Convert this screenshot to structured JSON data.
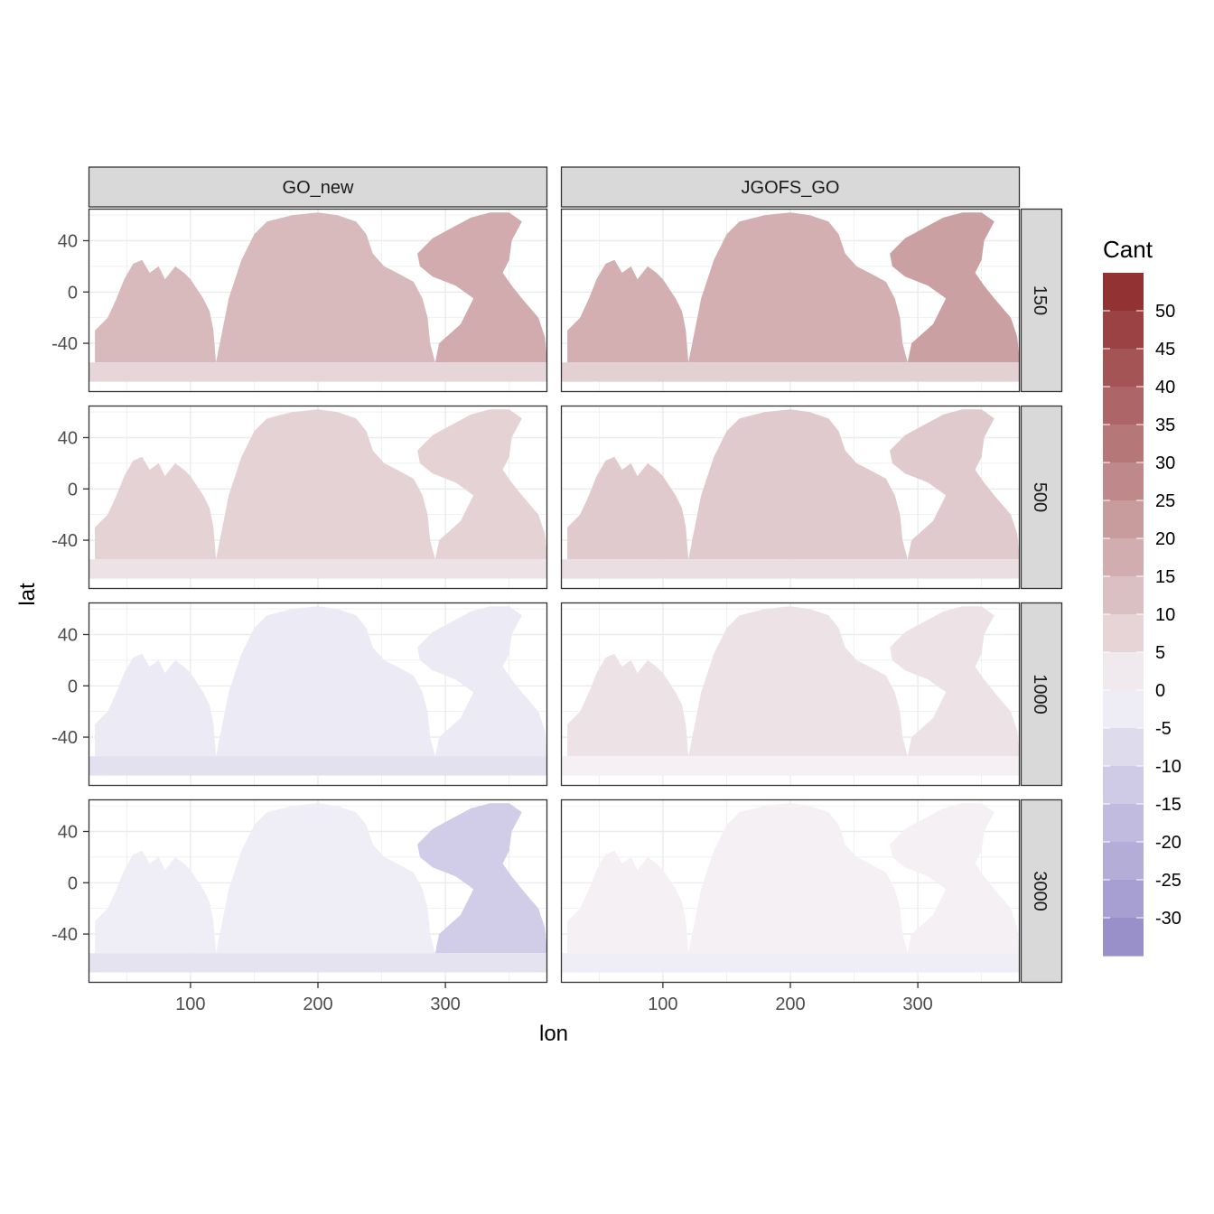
{
  "chart_data": {
    "type": "heatmap",
    "facet_columns": [
      "GO_new",
      "JGOFS_GO"
    ],
    "facet_rows": [
      "150",
      "500",
      "1000",
      "3000"
    ],
    "xlabel": "lon",
    "ylabel": "lat",
    "x_ticks": [
      100,
      200,
      300
    ],
    "y_ticks": [
      40,
      0,
      -40
    ],
    "xlim": [
      20,
      380
    ],
    "ylim": [
      -78,
      65
    ],
    "legend": {
      "title": "Cant",
      "position": "right",
      "range": [
        -35,
        55
      ],
      "breaks": [
        50,
        45,
        40,
        35,
        30,
        25,
        20,
        15,
        10,
        5,
        0,
        -5,
        -10,
        -15,
        -20,
        -25,
        -30
      ],
      "colors": {
        "high": "#8e2a2a",
        "mid": "#f7f6fa",
        "low": "#9389c7"
      }
    },
    "panel_mean_cant": {
      "GO_new": {
        "150": 14,
        "500": 8,
        "1000": -3,
        "3000": -2
      },
      "JGOFS_GO": {
        "150": 17,
        "500": 10,
        "1000": 4,
        "3000": 1
      }
    },
    "grid": true
  }
}
